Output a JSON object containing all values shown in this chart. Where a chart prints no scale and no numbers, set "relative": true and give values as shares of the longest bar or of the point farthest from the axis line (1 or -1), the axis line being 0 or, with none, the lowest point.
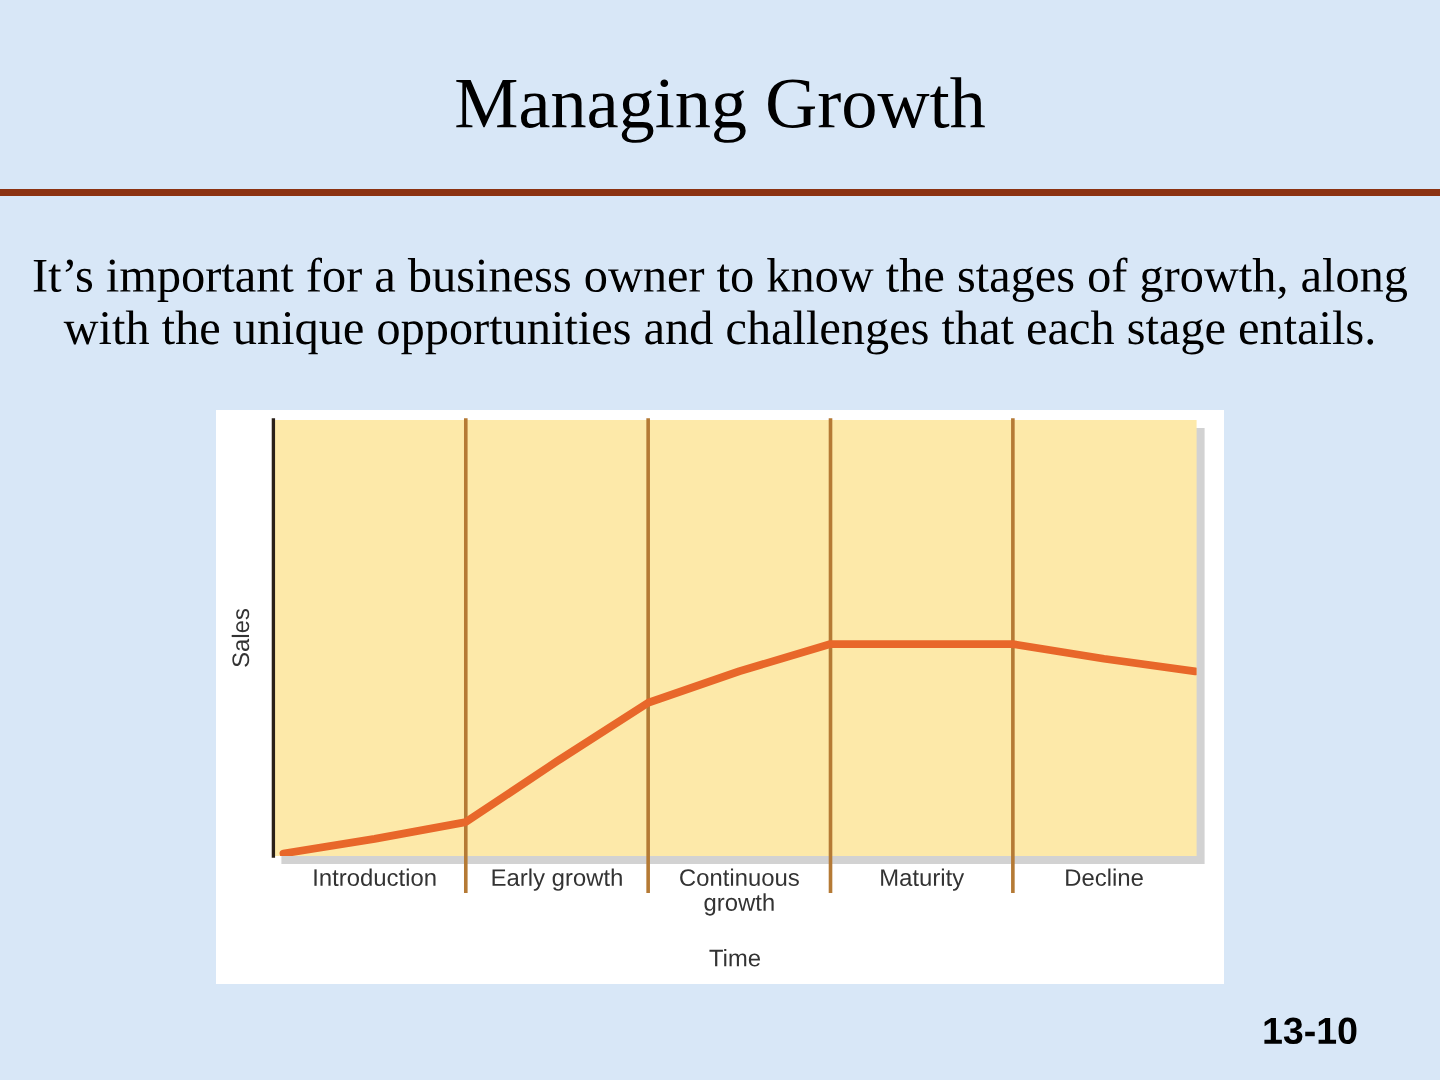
{
  "chart_data": {
    "type": "line",
    "title": "Managing Growth",
    "subtitle": "It’s important for a business owner to know the stages of growth, along with the unique opportunities and challenges that each stage entails.",
    "xlabel": "Time",
    "ylabel": "Sales",
    "relative": true,
    "tick_labels": "x",
    "grid": "x",
    "categories": [
      null,
      "Introduction",
      null,
      "Early growth",
      null,
      "Continuous\ngrowth",
      null,
      "Maturity",
      null,
      "Decline",
      null
    ],
    "series": [
      {
        "color": "#e8672a",
        "values": [
          0,
          0.07,
          0.15,
          0.44,
          0.72,
          0.87,
          1,
          1,
          1,
          0.93,
          0.87
        ]
      }
    ],
    "annotations": [
      "13-10"
    ]
  }
}
